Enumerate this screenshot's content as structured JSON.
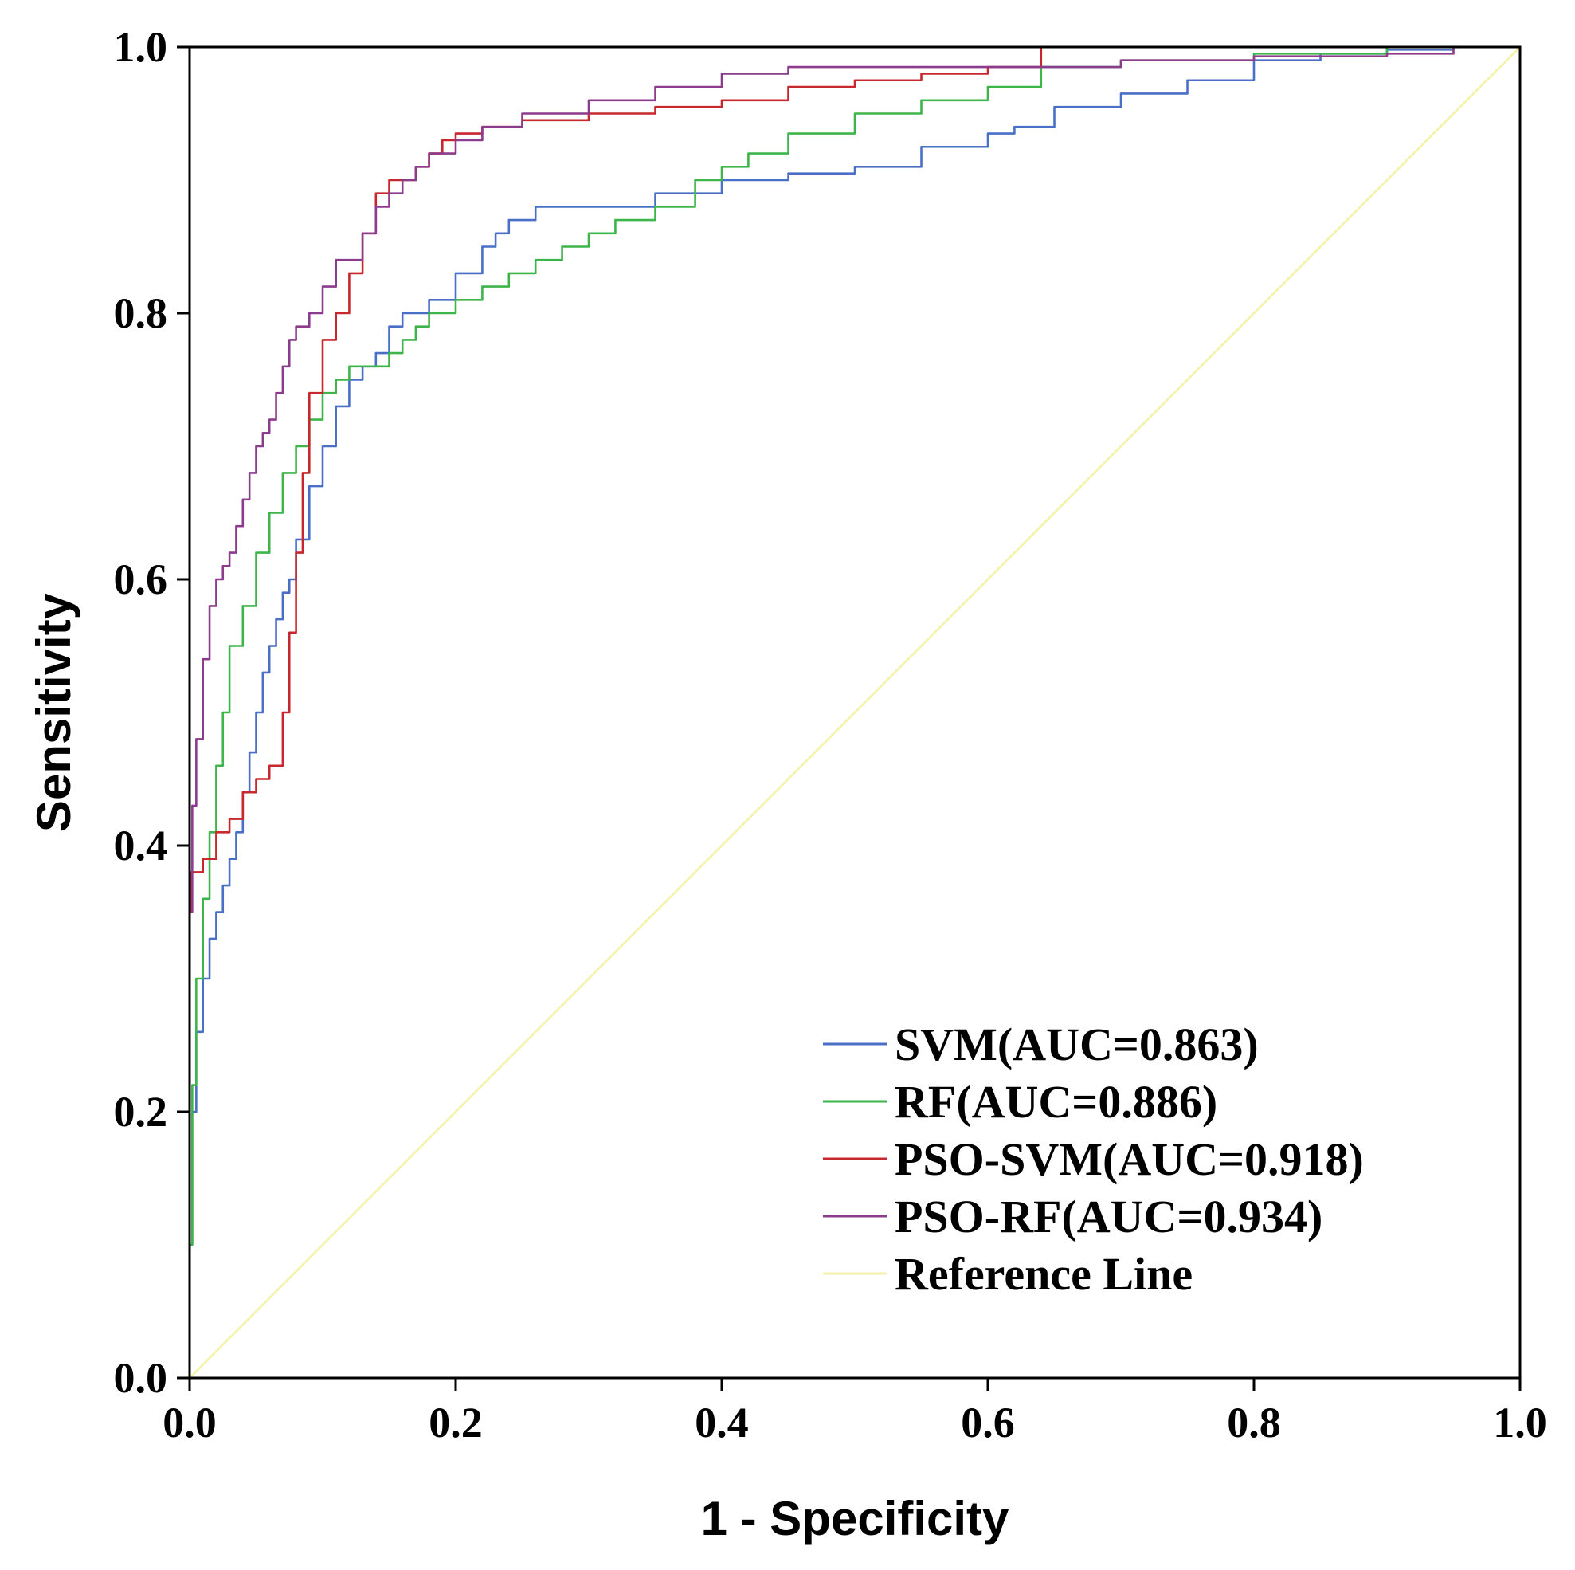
{
  "chart_data": {
    "type": "line",
    "title": "",
    "xlabel": "1 - Specificity",
    "ylabel": "Sensitivity",
    "xlim": [
      0,
      1
    ],
    "ylim": [
      0,
      1
    ],
    "x_ticks": [
      "0.0",
      "0.2",
      "0.4",
      "0.6",
      "0.8",
      "1.0"
    ],
    "y_ticks": [
      "0.0",
      "0.2",
      "0.4",
      "0.6",
      "0.8",
      "1.0"
    ],
    "grid": false,
    "legend_position": "bottom-right",
    "series": [
      {
        "name": "SVM(AUC=0.863)",
        "color": "#4a6fc7",
        "x": [
          0,
          0.002,
          0.005,
          0.01,
          0.015,
          0.02,
          0.025,
          0.03,
          0.035,
          0.04,
          0.045,
          0.05,
          0.055,
          0.06,
          0.065,
          0.07,
          0.075,
          0.08,
          0.09,
          0.1,
          0.11,
          0.12,
          0.13,
          0.14,
          0.15,
          0.16,
          0.17,
          0.18,
          0.2,
          0.22,
          0.23,
          0.24,
          0.26,
          0.28,
          0.3,
          0.35,
          0.4,
          0.45,
          0.5,
          0.55,
          0.6,
          0.62,
          0.65,
          0.7,
          0.75,
          0.8,
          0.85,
          0.9,
          0.95,
          1.0
        ],
        "y": [
          0.0,
          0.1,
          0.2,
          0.26,
          0.3,
          0.33,
          0.35,
          0.37,
          0.39,
          0.41,
          0.44,
          0.47,
          0.5,
          0.53,
          0.55,
          0.57,
          0.59,
          0.6,
          0.63,
          0.67,
          0.7,
          0.73,
          0.75,
          0.76,
          0.77,
          0.79,
          0.8,
          0.8,
          0.81,
          0.83,
          0.85,
          0.86,
          0.87,
          0.88,
          0.88,
          0.88,
          0.89,
          0.9,
          0.905,
          0.91,
          0.925,
          0.935,
          0.94,
          0.955,
          0.965,
          0.975,
          0.99,
          0.995,
          0.998,
          1.0
        ]
      },
      {
        "name": "RF(AUC=0.886)",
        "color": "#3db54a",
        "x": [
          0,
          0.002,
          0.005,
          0.01,
          0.015,
          0.02,
          0.025,
          0.03,
          0.04,
          0.05,
          0.06,
          0.07,
          0.08,
          0.09,
          0.1,
          0.11,
          0.12,
          0.13,
          0.14,
          0.15,
          0.16,
          0.17,
          0.18,
          0.2,
          0.22,
          0.24,
          0.26,
          0.28,
          0.3,
          0.32,
          0.35,
          0.38,
          0.4,
          0.42,
          0.45,
          0.5,
          0.55,
          0.6,
          0.64,
          0.65,
          0.7,
          0.8,
          0.9,
          1.0
        ],
        "y": [
          0.0,
          0.1,
          0.22,
          0.3,
          0.36,
          0.41,
          0.46,
          0.5,
          0.55,
          0.58,
          0.62,
          0.65,
          0.68,
          0.7,
          0.72,
          0.74,
          0.75,
          0.76,
          0.76,
          0.76,
          0.77,
          0.78,
          0.79,
          0.8,
          0.81,
          0.82,
          0.83,
          0.84,
          0.85,
          0.86,
          0.87,
          0.88,
          0.9,
          0.91,
          0.92,
          0.935,
          0.95,
          0.96,
          0.97,
          0.985,
          0.985,
          0.99,
          0.995,
          1.0
        ]
      },
      {
        "name": "PSO-SVM(AUC=0.918)",
        "color": "#c8282d",
        "x": [
          0,
          0.001,
          0.003,
          0.01,
          0.02,
          0.03,
          0.04,
          0.05,
          0.06,
          0.07,
          0.075,
          0.08,
          0.085,
          0.09,
          0.1,
          0.11,
          0.12,
          0.13,
          0.14,
          0.15,
          0.16,
          0.17,
          0.18,
          0.19,
          0.2,
          0.22,
          0.25,
          0.3,
          0.35,
          0.4,
          0.45,
          0.5,
          0.55,
          0.6,
          0.64,
          0.645,
          0.7,
          0.8,
          0.9,
          1.0
        ],
        "y": [
          0.0,
          0.35,
          0.38,
          0.38,
          0.39,
          0.41,
          0.42,
          0.44,
          0.45,
          0.46,
          0.5,
          0.56,
          0.62,
          0.68,
          0.74,
          0.78,
          0.8,
          0.83,
          0.86,
          0.89,
          0.9,
          0.9,
          0.91,
          0.92,
          0.93,
          0.935,
          0.94,
          0.945,
          0.95,
          0.955,
          0.96,
          0.97,
          0.975,
          0.98,
          0.985,
          1.0,
          1.0,
          1.0,
          1.0,
          1.0
        ]
      },
      {
        "name": "PSO-RF(AUC=0.934)",
        "color": "#8c3c8c",
        "x": [
          0,
          0.002,
          0.005,
          0.01,
          0.015,
          0.02,
          0.025,
          0.03,
          0.035,
          0.04,
          0.045,
          0.05,
          0.055,
          0.06,
          0.065,
          0.07,
          0.075,
          0.08,
          0.09,
          0.1,
          0.11,
          0.12,
          0.13,
          0.14,
          0.15,
          0.16,
          0.17,
          0.18,
          0.2,
          0.22,
          0.25,
          0.3,
          0.35,
          0.4,
          0.45,
          0.5,
          0.55,
          0.6,
          0.65,
          0.7,
          0.8,
          0.9,
          0.95,
          1.0
        ],
        "y": [
          0.0,
          0.35,
          0.43,
          0.48,
          0.54,
          0.58,
          0.6,
          0.61,
          0.62,
          0.64,
          0.66,
          0.68,
          0.7,
          0.71,
          0.72,
          0.74,
          0.76,
          0.78,
          0.79,
          0.8,
          0.82,
          0.84,
          0.84,
          0.86,
          0.88,
          0.89,
          0.9,
          0.91,
          0.92,
          0.93,
          0.94,
          0.95,
          0.96,
          0.97,
          0.98,
          0.985,
          0.985,
          0.985,
          0.985,
          0.985,
          0.99,
          0.993,
          0.995,
          1.0
        ]
      },
      {
        "name": "Reference Line",
        "color": "#f2f2a8",
        "x": [
          0,
          1
        ],
        "y": [
          0,
          1
        ]
      }
    ]
  }
}
